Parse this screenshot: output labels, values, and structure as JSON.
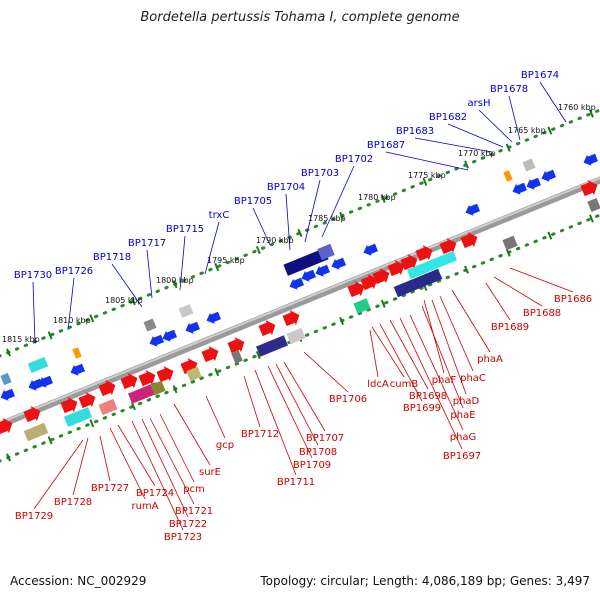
{
  "title": "Bordetella pertussis Tohama I, complete genome",
  "footer": {
    "accession": "Accession: NC_002929",
    "summary": "Topology: circular; Length: 4,086,189 bp; Genes: 3,497"
  },
  "colors": {
    "upper_label": "#0000cc",
    "lower_label": "#cc0000",
    "backbone": "#7a7a7a",
    "track_dot": "#2a8a2a",
    "track_tick": "#1a7a1a"
  },
  "kbp_marks": [
    {
      "label": "1760 kbp"
    },
    {
      "label": "1765 kbp"
    },
    {
      "label": "1770 kbp"
    },
    {
      "label": "1775 kbp"
    },
    {
      "label": "1780 kbp"
    },
    {
      "label": "1785 kbp"
    },
    {
      "label": "1790 kbp"
    },
    {
      "label": "1795 kbp"
    },
    {
      "label": "1800 kbp"
    },
    {
      "label": "1805 kbp"
    },
    {
      "label": "1810 kbp"
    },
    {
      "label": "1815 kbp"
    }
  ],
  "upper_labels": [
    {
      "text": "BP1674"
    },
    {
      "text": "BP1678"
    },
    {
      "text": "arsH"
    },
    {
      "text": "BP1682"
    },
    {
      "text": "BP1683"
    },
    {
      "text": "BP1687"
    },
    {
      "text": "BP1702"
    },
    {
      "text": "BP1703"
    },
    {
      "text": "BP1704"
    },
    {
      "text": "BP1705"
    },
    {
      "text": "trxC"
    },
    {
      "text": "BP1715"
    },
    {
      "text": "BP1717"
    },
    {
      "text": "BP1718"
    },
    {
      "text": "BP1726"
    },
    {
      "text": "BP1730"
    }
  ],
  "lower_labels": [
    {
      "text": "BP1686"
    },
    {
      "text": "BP1688"
    },
    {
      "text": "BP1689"
    },
    {
      "text": "phaA"
    },
    {
      "text": "phaC"
    },
    {
      "text": "phaF"
    },
    {
      "text": "phaD"
    },
    {
      "text": "phaE"
    },
    {
      "text": "phaG"
    },
    {
      "text": "BP1697"
    },
    {
      "text": "BP1698"
    },
    {
      "text": "BP1699"
    },
    {
      "text": "cumB"
    },
    {
      "text": "ldcA"
    },
    {
      "text": "BP1706"
    },
    {
      "text": "BP1707"
    },
    {
      "text": "BP1708"
    },
    {
      "text": "BP1709"
    },
    {
      "text": "BP1711"
    },
    {
      "text": "BP1712"
    },
    {
      "text": "gcp"
    },
    {
      "text": "surE"
    },
    {
      "text": "pcm"
    },
    {
      "text": "BP1721"
    },
    {
      "text": "BP1722"
    },
    {
      "text": "BP1723"
    },
    {
      "text": "BP1724"
    },
    {
      "text": "rumA"
    },
    {
      "text": "BP1727"
    },
    {
      "text": "BP1728"
    },
    {
      "text": "BP1729"
    }
  ]
}
